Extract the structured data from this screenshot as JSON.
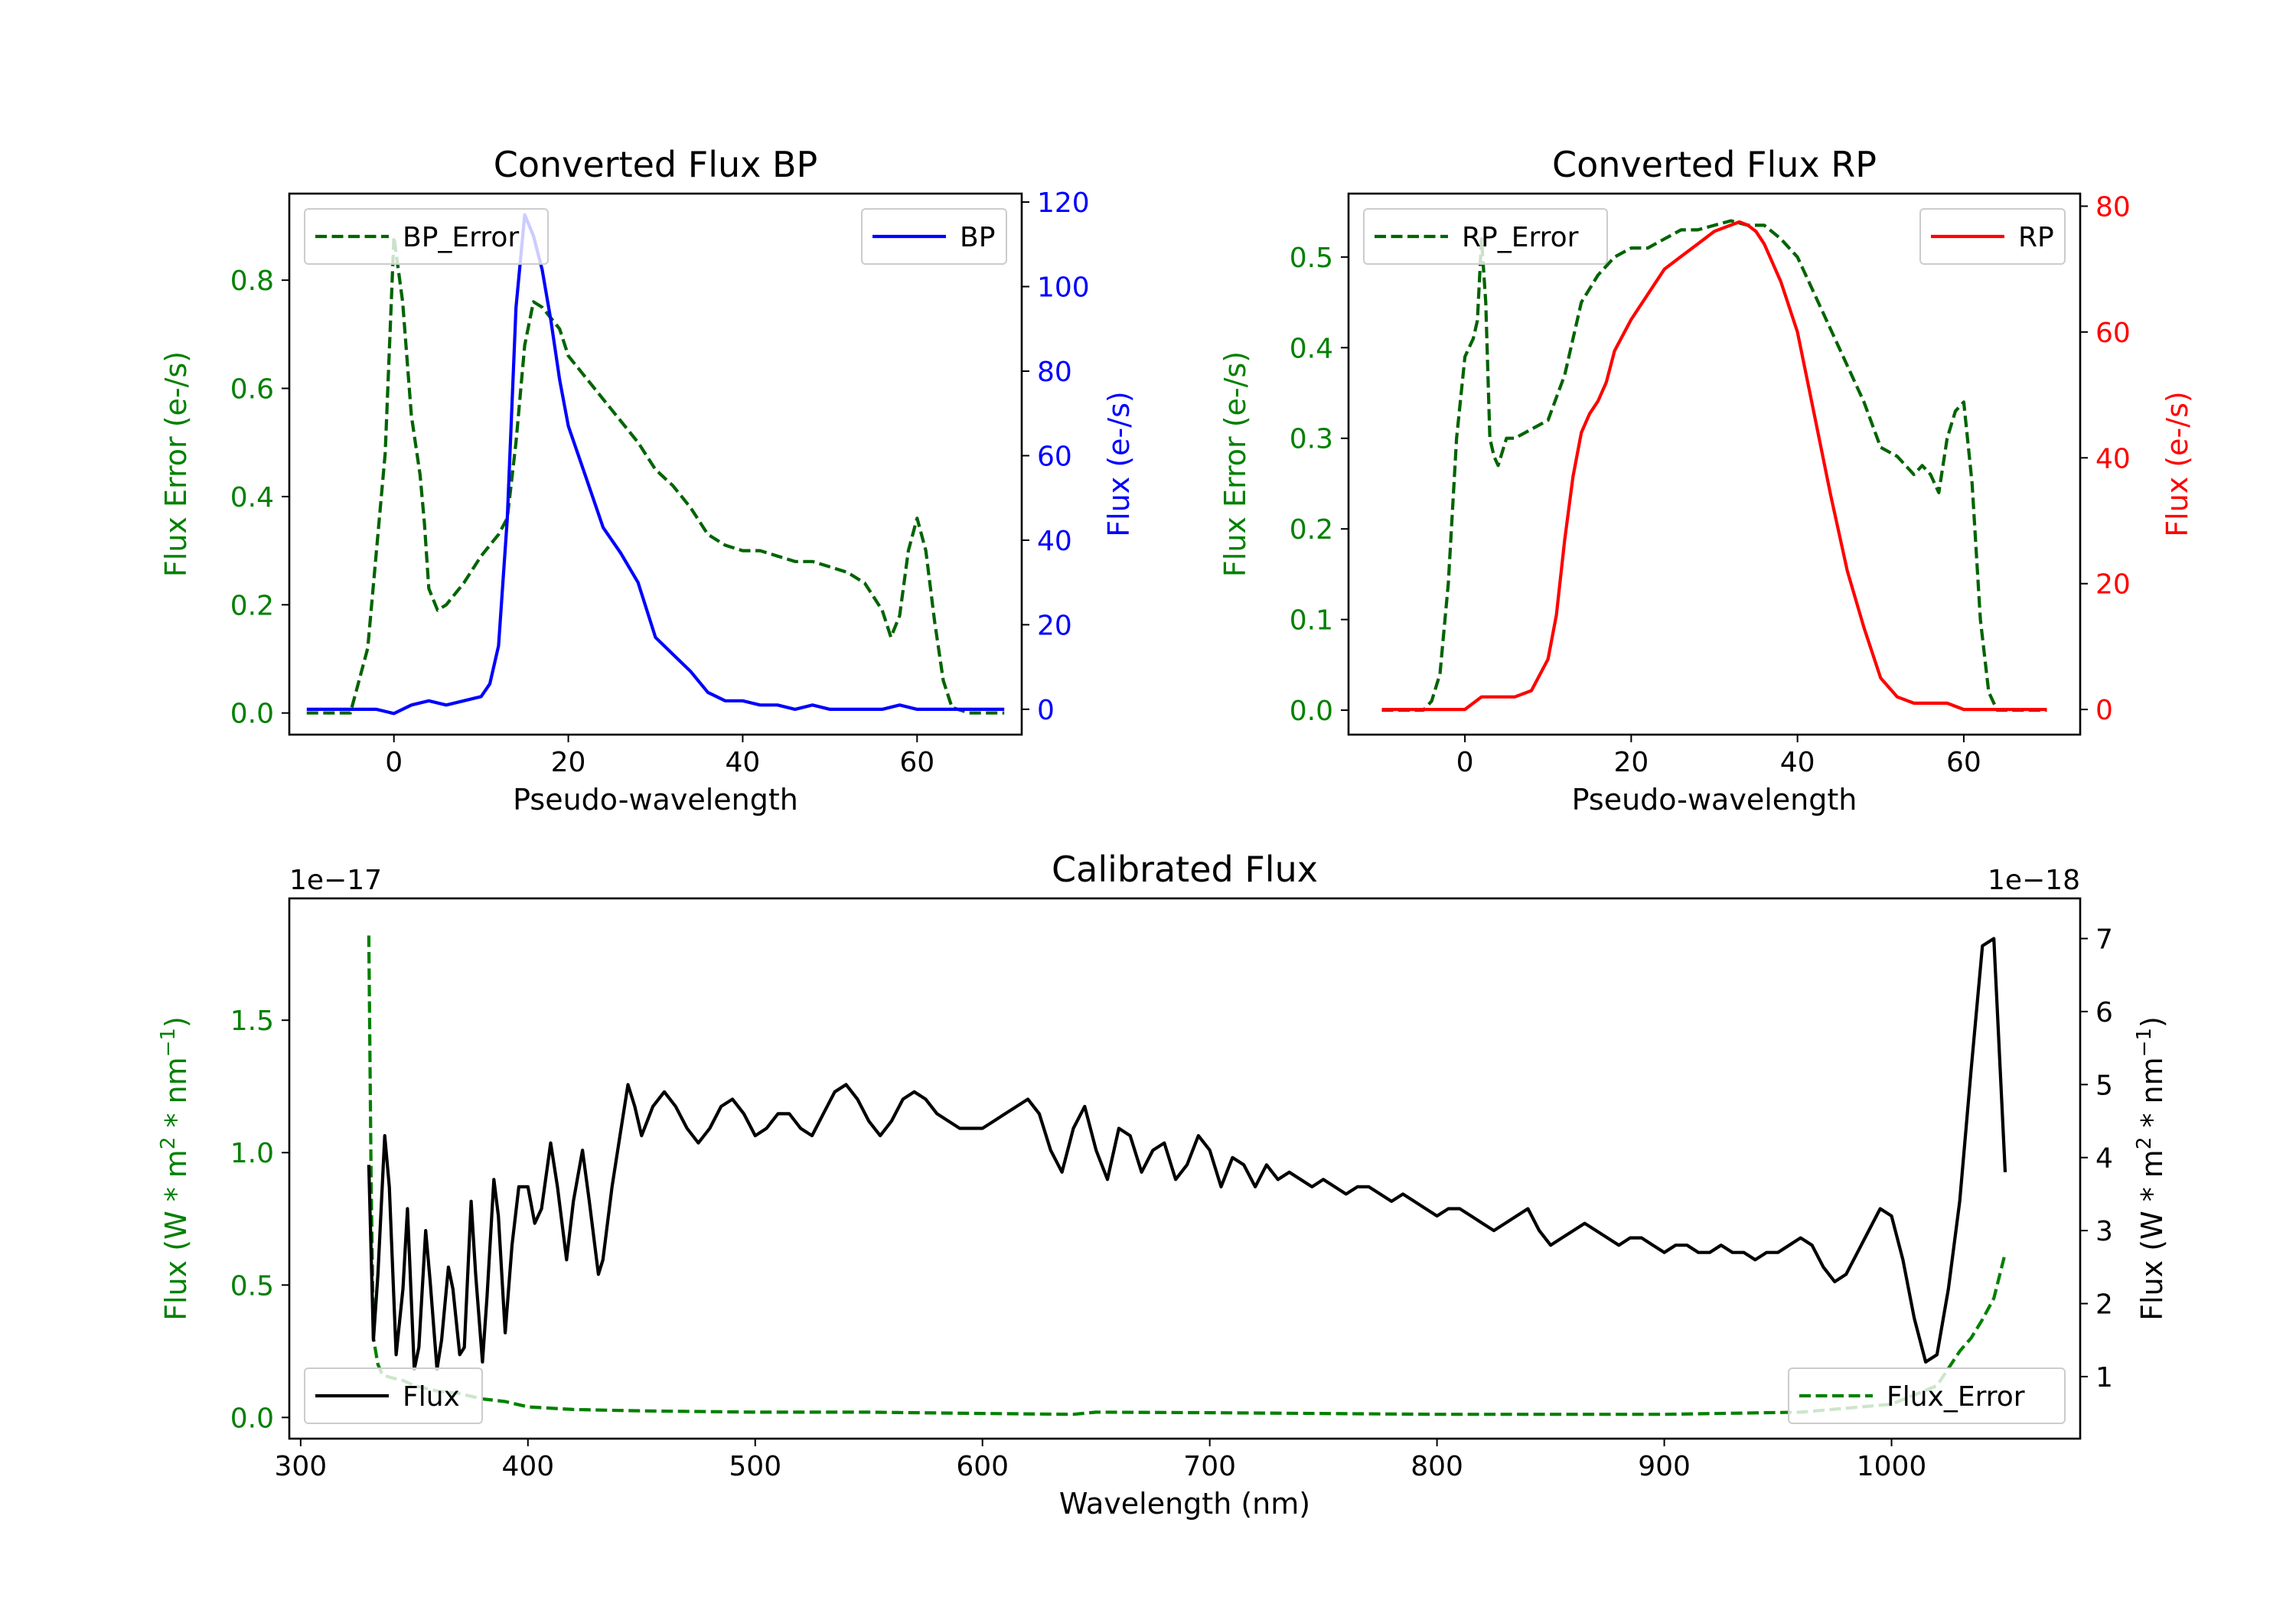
{
  "chart_data": [
    {
      "id": "bp",
      "type": "line",
      "title": "Converted Flux BP",
      "xlabel": "Pseudo-wavelength",
      "ylabel_left": "Flux Error (e-/s)",
      "ylabel_right": "Flux (e-/s)",
      "xlim": [
        -12,
        72
      ],
      "xticks": [
        0,
        20,
        40,
        60
      ],
      "ylim_left": [
        -0.04,
        0.96
      ],
      "yticks_left": [
        0.0,
        0.2,
        0.4,
        0.6,
        0.8
      ],
      "ylim_right": [
        -6,
        122
      ],
      "yticks_right": [
        0,
        20,
        40,
        60,
        80,
        100,
        120
      ],
      "colors": {
        "left_axis": "#008000",
        "right_axis": "#0000ff"
      },
      "legend_left": "BP_Error",
      "legend_right": "BP",
      "series": [
        {
          "name": "BP_Error",
          "axis": "left",
          "style": "dashed",
          "color": "#006400",
          "x": [
            -10,
            -5,
            -3,
            -1,
            0,
            1,
            2,
            3,
            3.5,
            4,
            5,
            6,
            8,
            10,
            12,
            13,
            14,
            15,
            16,
            17,
            18,
            19,
            20,
            22,
            24,
            26,
            28,
            30,
            32,
            34,
            36,
            38,
            40,
            42,
            44,
            46,
            48,
            50,
            52,
            54,
            56,
            57,
            58,
            59,
            60,
            61,
            62,
            63,
            64,
            66,
            68,
            70
          ],
          "y": [
            0.0,
            0.0,
            0.12,
            0.48,
            0.88,
            0.76,
            0.55,
            0.44,
            0.35,
            0.23,
            0.19,
            0.2,
            0.24,
            0.29,
            0.33,
            0.36,
            0.5,
            0.68,
            0.76,
            0.75,
            0.73,
            0.71,
            0.66,
            0.62,
            0.58,
            0.54,
            0.5,
            0.45,
            0.42,
            0.38,
            0.33,
            0.31,
            0.3,
            0.3,
            0.29,
            0.28,
            0.28,
            0.27,
            0.26,
            0.24,
            0.19,
            0.14,
            0.18,
            0.3,
            0.36,
            0.3,
            0.17,
            0.06,
            0.01,
            0.0,
            0.0,
            0.0
          ]
        },
        {
          "name": "BP",
          "axis": "right",
          "style": "solid",
          "color": "#0000ff",
          "x": [
            -10,
            -6,
            -2,
            0,
            2,
            4,
            6,
            8,
            10,
            11,
            12,
            13,
            14,
            15,
            16,
            17,
            18,
            19,
            20,
            22,
            24,
            26,
            28,
            30,
            31,
            32,
            34,
            36,
            38,
            40,
            42,
            44,
            46,
            48,
            50,
            52,
            54,
            56,
            58,
            60,
            62,
            64,
            66,
            68,
            70
          ],
          "y": [
            0,
            0,
            0,
            -1,
            1,
            2,
            1,
            2,
            3,
            6,
            15,
            45,
            95,
            117,
            112,
            104,
            92,
            78,
            67,
            55,
            43,
            37,
            30,
            17,
            15,
            13,
            9,
            4,
            2,
            2,
            1,
            1,
            0,
            1,
            0,
            0,
            0,
            0,
            1,
            0,
            0,
            0,
            0,
            0,
            0
          ]
        }
      ]
    },
    {
      "id": "rp",
      "type": "line",
      "title": "Converted Flux RP",
      "xlabel": "Pseudo-wavelength",
      "ylabel_left": "Flux Error (e-/s)",
      "ylabel_right": "Flux (e-/s)",
      "xlim": [
        -14,
        74
      ],
      "xticks": [
        0,
        20,
        40,
        60
      ],
      "ylim_left": [
        -0.027,
        0.57
      ],
      "yticks_left": [
        0.0,
        0.1,
        0.2,
        0.3,
        0.4,
        0.5
      ],
      "ylim_right": [
        -4,
        82
      ],
      "yticks_right": [
        0,
        20,
        40,
        60,
        80
      ],
      "colors": {
        "left_axis": "#008000",
        "right_axis": "#ff0000"
      },
      "legend_left": "RP_Error",
      "legend_right": "RP",
      "series": [
        {
          "name": "RP_Error",
          "axis": "left",
          "style": "dashed",
          "color": "#006400",
          "x": [
            -10,
            -5,
            -4,
            -3,
            -2,
            -1,
            0,
            0.5,
            1,
            1.5,
            2,
            2.5,
            3,
            3.5,
            4,
            5,
            6,
            8,
            10,
            12,
            14,
            16,
            18,
            20,
            22,
            24,
            26,
            28,
            30,
            32,
            34,
            36,
            38,
            40,
            42,
            44,
            46,
            48,
            50,
            52,
            54,
            55,
            56,
            57,
            58,
            59,
            60,
            61,
            62,
            63,
            64,
            66,
            68,
            70
          ],
          "y": [
            0.0,
            0.0,
            0.01,
            0.04,
            0.14,
            0.3,
            0.39,
            0.4,
            0.41,
            0.43,
            0.52,
            0.45,
            0.3,
            0.28,
            0.27,
            0.3,
            0.3,
            0.31,
            0.32,
            0.37,
            0.45,
            0.48,
            0.5,
            0.51,
            0.51,
            0.52,
            0.53,
            0.53,
            0.535,
            0.54,
            0.535,
            0.535,
            0.52,
            0.5,
            0.46,
            0.42,
            0.38,
            0.34,
            0.29,
            0.28,
            0.26,
            0.27,
            0.26,
            0.24,
            0.3,
            0.33,
            0.34,
            0.25,
            0.1,
            0.02,
            0.0,
            0.0,
            0.0,
            0.0
          ]
        },
        {
          "name": "RP",
          "axis": "right",
          "style": "solid",
          "color": "#ff0000",
          "x": [
            -10,
            -5,
            0,
            2,
            3,
            4,
            6,
            8,
            10,
            11,
            12,
            13,
            14,
            15,
            16,
            17,
            18,
            20,
            22,
            24,
            26,
            28,
            30,
            32,
            33,
            34,
            35,
            36,
            38,
            40,
            42,
            44,
            46,
            48,
            50,
            52,
            54,
            56,
            58,
            60,
            62,
            64,
            66,
            68,
            70
          ],
          "y": [
            0,
            0,
            0,
            2,
            2,
            2,
            2,
            3,
            8,
            15,
            27,
            37,
            44,
            47,
            49,
            52,
            57,
            62,
            66,
            70,
            72,
            74,
            76,
            77,
            77.5,
            77,
            76,
            74,
            68,
            60,
            47,
            34,
            22,
            13,
            5,
            2,
            1,
            1,
            1,
            0,
            0,
            0,
            0,
            0,
            0
          ]
        }
      ]
    },
    {
      "id": "calibrated",
      "type": "line",
      "title": "Calibrated Flux",
      "xlabel": "Wavelength (nm)",
      "ylabel_left": "Flux (W * m",
      "ylabel_right": "Flux (W * m",
      "ylabel_unit_tail": " * nm",
      "ylabel_exp1": "2",
      "ylabel_exp2": "−1",
      "ylabel_close": ")",
      "offset_left": "1e−17",
      "offset_right": "1e−18",
      "xlim": [
        295,
        1083
      ],
      "xticks": [
        300,
        400,
        500,
        600,
        700,
        800,
        900,
        1000
      ],
      "ylim_left": [
        -0.08,
        1.96
      ],
      "yticks_left": [
        0.0,
        0.5,
        1.0,
        1.5
      ],
      "ylim_right": [
        0.15,
        7.55
      ],
      "yticks_right": [
        1,
        2,
        3,
        4,
        5,
        6,
        7
      ],
      "colors": {
        "left_axis": "#008000",
        "right_axis": "#000000"
      },
      "legend_left": "Flux",
      "legend_right": "Flux_Error",
      "series": [
        {
          "name": "Flux_Error",
          "axis": "left",
          "style": "dashed",
          "color": "#008000",
          "x": [
            330,
            331,
            332,
            334,
            336,
            340,
            345,
            350,
            360,
            370,
            380,
            390,
            400,
            420,
            450,
            500,
            550,
            600,
            640,
            650,
            700,
            800,
            900,
            960,
            1000,
            1020,
            1030,
            1035,
            1040,
            1045,
            1050
          ],
          "y": [
            1.82,
            0.9,
            0.3,
            0.2,
            0.16,
            0.15,
            0.14,
            0.12,
            0.1,
            0.09,
            0.07,
            0.06,
            0.04,
            0.03,
            0.025,
            0.02,
            0.02,
            0.015,
            0.012,
            0.02,
            0.018,
            0.012,
            0.012,
            0.02,
            0.05,
            0.12,
            0.25,
            0.3,
            0.37,
            0.45,
            0.62
          ]
        },
        {
          "name": "Flux",
          "axis": "right",
          "style": "solid",
          "color": "#000000",
          "x": [
            330,
            332,
            334,
            337,
            339,
            342,
            345,
            347,
            350,
            352,
            355,
            357,
            360,
            362,
            365,
            367,
            370,
            372,
            375,
            377,
            380,
            382,
            385,
            387,
            390,
            393,
            396,
            400,
            403,
            406,
            410,
            413,
            417,
            420,
            424,
            427,
            431,
            433,
            437,
            440,
            444,
            447,
            450,
            455,
            460,
            465,
            470,
            475,
            480,
            485,
            490,
            495,
            500,
            505,
            510,
            515,
            520,
            525,
            530,
            535,
            540,
            545,
            550,
            555,
            560,
            565,
            570,
            575,
            580,
            585,
            590,
            595,
            600,
            605,
            610,
            615,
            620,
            625,
            630,
            635,
            640,
            645,
            650,
            655,
            660,
            665,
            670,
            675,
            680,
            685,
            690,
            695,
            700,
            705,
            710,
            715,
            720,
            725,
            730,
            735,
            740,
            745,
            750,
            755,
            760,
            765,
            770,
            775,
            780,
            785,
            790,
            795,
            800,
            805,
            810,
            815,
            820,
            825,
            830,
            835,
            840,
            845,
            850,
            855,
            860,
            865,
            870,
            875,
            880,
            885,
            890,
            895,
            900,
            905,
            910,
            915,
            920,
            925,
            930,
            935,
            940,
            945,
            950,
            955,
            960,
            965,
            970,
            975,
            980,
            985,
            990,
            995,
            1000,
            1005,
            1010,
            1015,
            1020,
            1025,
            1030,
            1035,
            1040,
            1045,
            1050
          ],
          "y": [
            3.9,
            1.5,
            2.4,
            4.3,
            3.6,
            1.3,
            2.2,
            3.3,
            1.1,
            1.4,
            3.0,
            2.3,
            1.1,
            1.5,
            2.5,
            2.2,
            1.3,
            1.4,
            3.4,
            2.4,
            1.2,
            2.1,
            3.7,
            3.2,
            1.6,
            2.8,
            3.6,
            3.6,
            3.1,
            3.3,
            4.2,
            3.6,
            2.6,
            3.4,
            4.1,
            3.4,
            2.4,
            2.6,
            3.6,
            4.2,
            5.0,
            4.7,
            4.3,
            4.7,
            4.9,
            4.7,
            4.4,
            4.2,
            4.4,
            4.7,
            4.8,
            4.6,
            4.3,
            4.4,
            4.6,
            4.6,
            4.4,
            4.3,
            4.6,
            4.9,
            5.0,
            4.8,
            4.5,
            4.3,
            4.5,
            4.8,
            4.9,
            4.8,
            4.6,
            4.5,
            4.4,
            4.4,
            4.4,
            4.5,
            4.6,
            4.7,
            4.8,
            4.6,
            4.1,
            3.8,
            4.4,
            4.7,
            4.1,
            3.7,
            4.4,
            4.3,
            3.8,
            4.1,
            4.2,
            3.7,
            3.9,
            4.3,
            4.1,
            3.6,
            4.0,
            3.9,
            3.6,
            3.9,
            3.7,
            3.8,
            3.7,
            3.6,
            3.7,
            3.6,
            3.5,
            3.6,
            3.6,
            3.5,
            3.4,
            3.5,
            3.4,
            3.3,
            3.2,
            3.3,
            3.3,
            3.2,
            3.1,
            3.0,
            3.1,
            3.2,
            3.3,
            3.0,
            2.8,
            2.9,
            3.0,
            3.1,
            3.0,
            2.9,
            2.8,
            2.9,
            2.9,
            2.8,
            2.7,
            2.8,
            2.8,
            2.7,
            2.7,
            2.8,
            2.7,
            2.7,
            2.6,
            2.7,
            2.7,
            2.8,
            2.9,
            2.8,
            2.5,
            2.3,
            2.4,
            2.7,
            3.0,
            3.3,
            3.2,
            2.6,
            1.8,
            1.2,
            1.3,
            2.2,
            3.4,
            5.2,
            6.9,
            7.0,
            3.8
          ]
        }
      ]
    }
  ]
}
